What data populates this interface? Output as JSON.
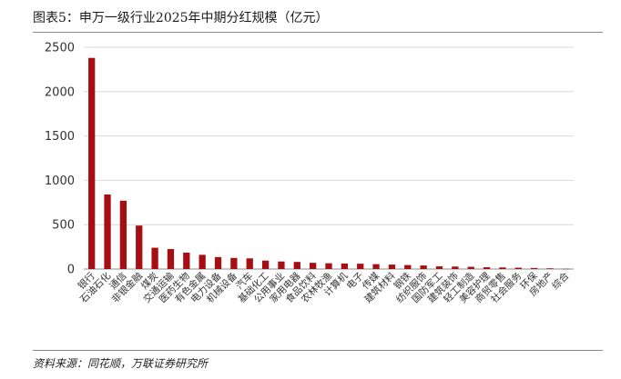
{
  "header": {
    "title": "图表5：申万一级行业2025年中期分红规模（亿元）"
  },
  "footer": {
    "source": "资料来源：同花顺，万联证券研究所"
  },
  "colors": {
    "bar": "#a50e12",
    "grid": "#d9d9d9",
    "axis": "#8c8c8c"
  },
  "chart_data": {
    "type": "bar",
    "title": "",
    "xlabel": "",
    "ylabel": "",
    "ylim": [
      0,
      2500
    ],
    "yticks": [
      0,
      500,
      1000,
      1500,
      2000,
      2500
    ],
    "grid": true,
    "categories": [
      "银行",
      "石油石化",
      "通信",
      "非银金融",
      "煤炭",
      "交通运输",
      "医药生物",
      "有色金属",
      "电力设备",
      "机械设备",
      "汽车",
      "基础化工",
      "公用事业",
      "家用电器",
      "食品饮料",
      "农林牧渔",
      "计算机",
      "电子",
      "传媒",
      "建筑材料",
      "钢铁",
      "纺织服饰",
      "国防军工",
      "建筑装饰",
      "轻工制造",
      "美容护理",
      "商贸零售",
      "社会服务",
      "环保",
      "房地产",
      "综合"
    ],
    "values": [
      2380,
      840,
      770,
      490,
      240,
      225,
      185,
      160,
      135,
      125,
      120,
      95,
      85,
      80,
      70,
      65,
      62,
      60,
      55,
      50,
      45,
      40,
      30,
      28,
      25,
      20,
      18,
      15,
      12,
      8,
      3
    ]
  }
}
